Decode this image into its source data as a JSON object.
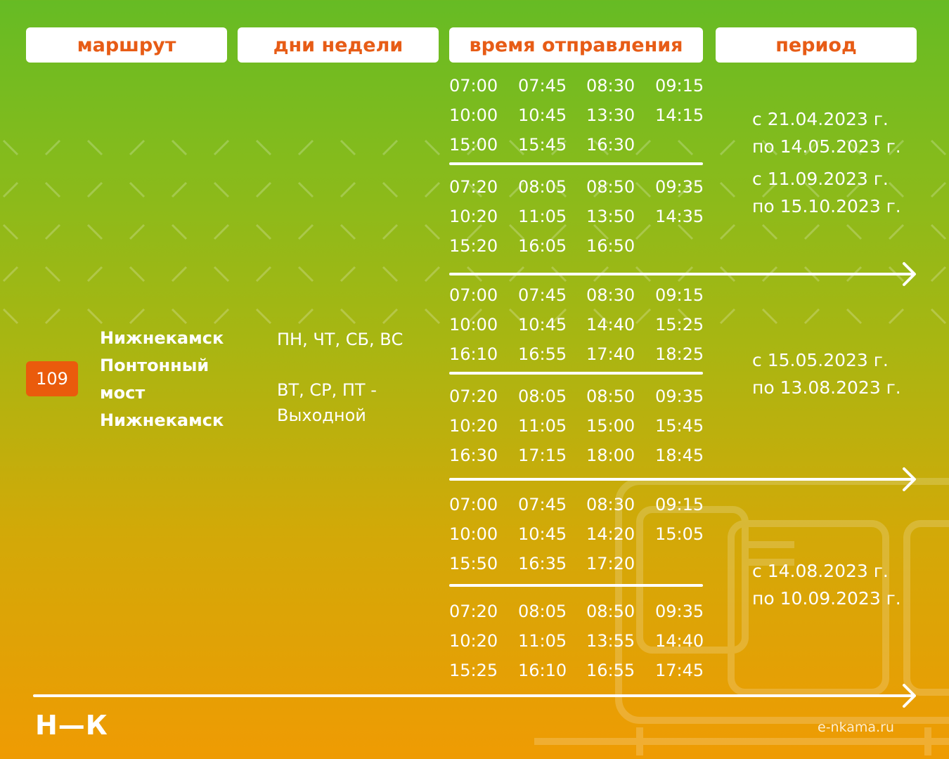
{
  "header": {
    "route": "маршрут",
    "days": "дни недели",
    "departure": "время отправления",
    "period": "период"
  },
  "route": {
    "number": "109",
    "stops": [
      "Нижнекамск",
      "Понтонный",
      "мост",
      "Нижнекамск"
    ]
  },
  "days": {
    "working": "ПН, ЧТ, СБ, ВС",
    "off_days": "ВТ, СР, ПТ -",
    "off_label": "Выходной"
  },
  "schedules": [
    {
      "rows_a": [
        [
          "07:00",
          "07:45",
          "08:30",
          "09:15"
        ],
        [
          "10:00",
          "10:45",
          "13:30",
          "14:15"
        ],
        [
          "15:00",
          "15:45",
          "16:30",
          ""
        ]
      ],
      "rows_b": [
        [
          "07:20",
          "08:05",
          "08:50",
          "09:35"
        ],
        [
          "10:20",
          "11:05",
          "13:50",
          "14:35"
        ],
        [
          "15:20",
          "16:05",
          "16:50",
          ""
        ]
      ],
      "period_lines": [
        "с 21.04.2023 г.",
        "по 14.05.2023 г.",
        "с 11.09.2023 г.",
        "по 15.10.2023 г."
      ]
    },
    {
      "rows_a": [
        [
          "07:00",
          "07:45",
          "08:30",
          "09:15"
        ],
        [
          "10:00",
          "10:45",
          "14:40",
          "15:25"
        ],
        [
          "16:10",
          "16:55",
          "17:40",
          "18:25"
        ]
      ],
      "rows_b": [
        [
          "07:20",
          "08:05",
          "08:50",
          "09:35"
        ],
        [
          "10:20",
          "11:05",
          "15:00",
          "15:45"
        ],
        [
          "16:30",
          "17:15",
          "18:00",
          "18:45"
        ]
      ],
      "period_lines": [
        "с 15.05.2023 г.",
        "по 13.08.2023 г."
      ]
    },
    {
      "rows_a": [
        [
          "07:00",
          "07:45",
          "08:30",
          "09:15"
        ],
        [
          "10:00",
          "10:45",
          "14:20",
          "15:05"
        ],
        [
          "15:50",
          "16:35",
          "17:20",
          ""
        ]
      ],
      "rows_b": [
        [
          "07:20",
          "08:05",
          "08:50",
          "09:35"
        ],
        [
          "10:20",
          "11:05",
          "13:55",
          "14:40"
        ],
        [
          "15:25",
          "16:10",
          "16:55",
          "17:45"
        ]
      ],
      "period_lines": [
        "с 14.08.2023 г.",
        "по 10.09.2023 г."
      ]
    }
  ],
  "footer": {
    "logo": "Н—К",
    "site": "e-nkama.ru"
  }
}
